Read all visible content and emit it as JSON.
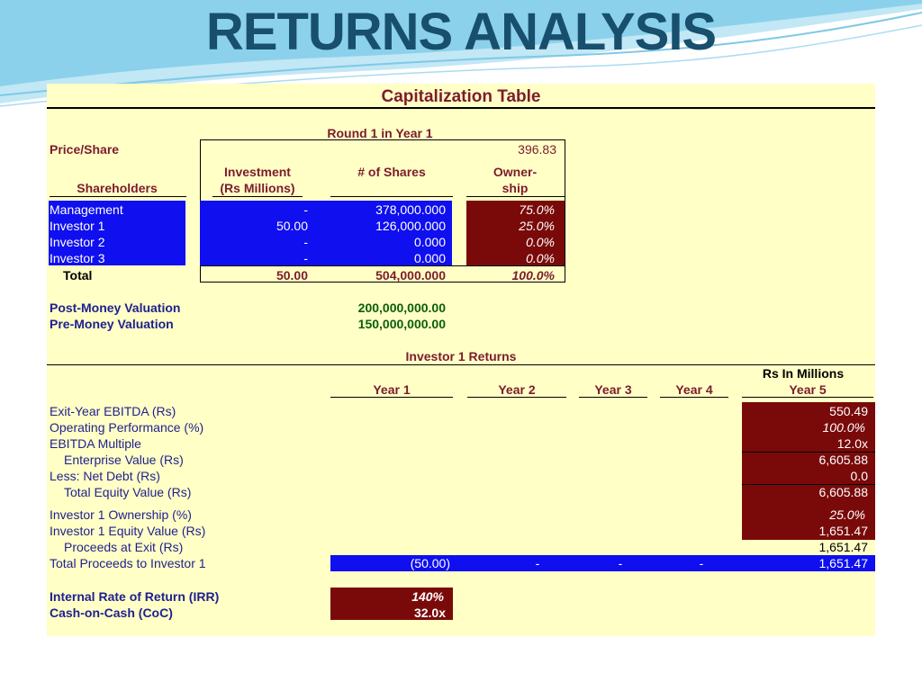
{
  "page_title": "RETURNS ANALYSIS",
  "cap_table": {
    "title": "Capitalization Table",
    "round": "Round 1 in Year 1",
    "price_label": "Price/Share",
    "price_value": "396.83",
    "headers": {
      "shareholders": "Shareholders",
      "investment_1": "Investment",
      "investment_2": "(Rs Millions)",
      "shares": "# of Shares",
      "ownership_1": "Owner-",
      "ownership_2": "ship"
    },
    "rows": [
      {
        "name": "Management",
        "investment": "-",
        "shares": "378,000.000",
        "ownership": "75.0%"
      },
      {
        "name": "Investor 1",
        "investment": "50.00",
        "shares": "126,000.000",
        "ownership": "25.0%"
      },
      {
        "name": "Investor 2",
        "investment": "-",
        "shares": "0.000",
        "ownership": "0.0%"
      },
      {
        "name": "Investor 3",
        "investment": "-",
        "shares": "0.000",
        "ownership": "0.0%"
      }
    ],
    "total": {
      "label": "Total",
      "investment": "50.00",
      "shares": "504,000.000",
      "ownership": "100.0%"
    },
    "post_money_label": "Post-Money Valuation",
    "post_money_value": "200,000,000.00",
    "pre_money_label": "Pre-Money Valuation",
    "pre_money_value": "150,000,000.00"
  },
  "returns": {
    "title": "Investor 1 Returns",
    "units": "Rs In Millions",
    "years": [
      "Year 1",
      "Year 2",
      "Year 3",
      "Year 4",
      "Year 5"
    ],
    "lines": [
      {
        "label": "Exit-Year EBITDA (Rs)",
        "value": "550.49"
      },
      {
        "label": "Operating Performance (%)",
        "value": "100.0%"
      },
      {
        "label": "EBITDA Multiple",
        "value": "12.0x"
      },
      {
        "label": "Enterprise Value (Rs)",
        "value": "6,605.88"
      },
      {
        "label": "Less: Net Debt (Rs)",
        "value": "0.0"
      },
      {
        "label": "Total Equity Value (Rs)",
        "value": "6,605.88"
      },
      {
        "label": "Investor 1 Ownership (%)",
        "value": "25.0%"
      },
      {
        "label": "Investor 1 Equity Value (Rs)",
        "value": "1,651.47"
      },
      {
        "label": "Proceeds at Exit (Rs)",
        "value": "1,651.47"
      }
    ],
    "total_proceeds": {
      "label": "Total Proceeds to Investor 1",
      "values": [
        "(50.00)",
        "-",
        "-",
        "-",
        "1,651.47"
      ]
    },
    "irr_label": "Internal Rate of Return (IRR)",
    "irr_value": "140%",
    "coc_label": "Cash-on-Cash (CoC)",
    "coc_value": "32.0x"
  },
  "colors": {
    "sheet_bg": "#ffffc6",
    "title": "#174f6d",
    "blue_fill": "#0f0ff0",
    "dark_red_fill": "#7a0a0a",
    "navy_text": "#1f1f8f",
    "maroon_text": "#7b1c2d",
    "green_text": "#0a5e0a"
  }
}
